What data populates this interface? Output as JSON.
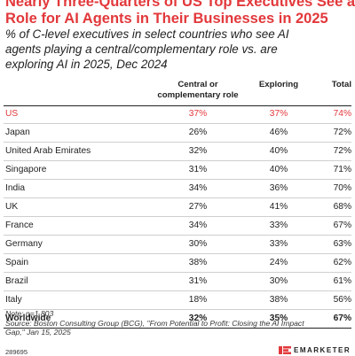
{
  "title_lines": [
    "Nearly Three-Quarters of US Top Executives See a",
    "Role for AI Agents in Their Businesses in 2025"
  ],
  "subtitle_lines": [
    "% of C-level executives in select countries who see AI",
    "agents playing a central/complementary role vs. are",
    "exploring AI in 2025, Dec 2024"
  ],
  "columns": {
    "central_line1": "Central or",
    "central_line2": "complementary role",
    "exploring": "Exploring",
    "total": "Total"
  },
  "colors": {
    "accent": "#e2383b",
    "text": "#222222",
    "divider": "#cfcfcf"
  },
  "chart_data": {
    "type": "table",
    "title": "Nearly Three-Quarters of US Top Executives See a Role for AI Agents in Their Businesses in 2025",
    "subtitle": "% of C-level executives in select countries who see AI agents playing a central/complementary role vs. are exploring AI in 2025, Dec 2024",
    "columns": [
      "Central or complementary role",
      "Exploring",
      "Total"
    ],
    "rows": [
      {
        "country": "US",
        "central": "37%",
        "exploring": "37%",
        "total": "74%",
        "highlight": true
      },
      {
        "country": "Japan",
        "central": "26%",
        "exploring": "46%",
        "total": "72%"
      },
      {
        "country": "United Arab Emirates",
        "central": "32%",
        "exploring": "40%",
        "total": "72%"
      },
      {
        "country": "Singapore",
        "central": "31%",
        "exploring": "40%",
        "total": "71%"
      },
      {
        "country": "India",
        "central": "34%",
        "exploring": "36%",
        "total": "70%"
      },
      {
        "country": "UK",
        "central": "27%",
        "exploring": "41%",
        "total": "68%"
      },
      {
        "country": "France",
        "central": "34%",
        "exploring": "33%",
        "total": "67%"
      },
      {
        "country": "Germany",
        "central": "30%",
        "exploring": "33%",
        "total": "63%"
      },
      {
        "country": "Spain",
        "central": "38%",
        "exploring": "24%",
        "total": "62%"
      },
      {
        "country": "Brazil",
        "central": "31%",
        "exploring": "30%",
        "total": "61%"
      },
      {
        "country": "Italy",
        "central": "18%",
        "exploring": "38%",
        "total": "56%"
      },
      {
        "country": "Worldwide",
        "central": "32%",
        "exploring": "35%",
        "total": "67%",
        "bold": true
      }
    ]
  },
  "notes": {
    "note": "Note: n=1,803",
    "source_line1": "Source: Boston Consulting Group (BCG), \"From Potential to Profit: Closing the AI Impact",
    "source_line2": "Gap,\" Jan 15, 2025"
  },
  "footer": {
    "code": "289695",
    "brand": "EMARKETER",
    "logo_icon": "em-logo-icon"
  }
}
